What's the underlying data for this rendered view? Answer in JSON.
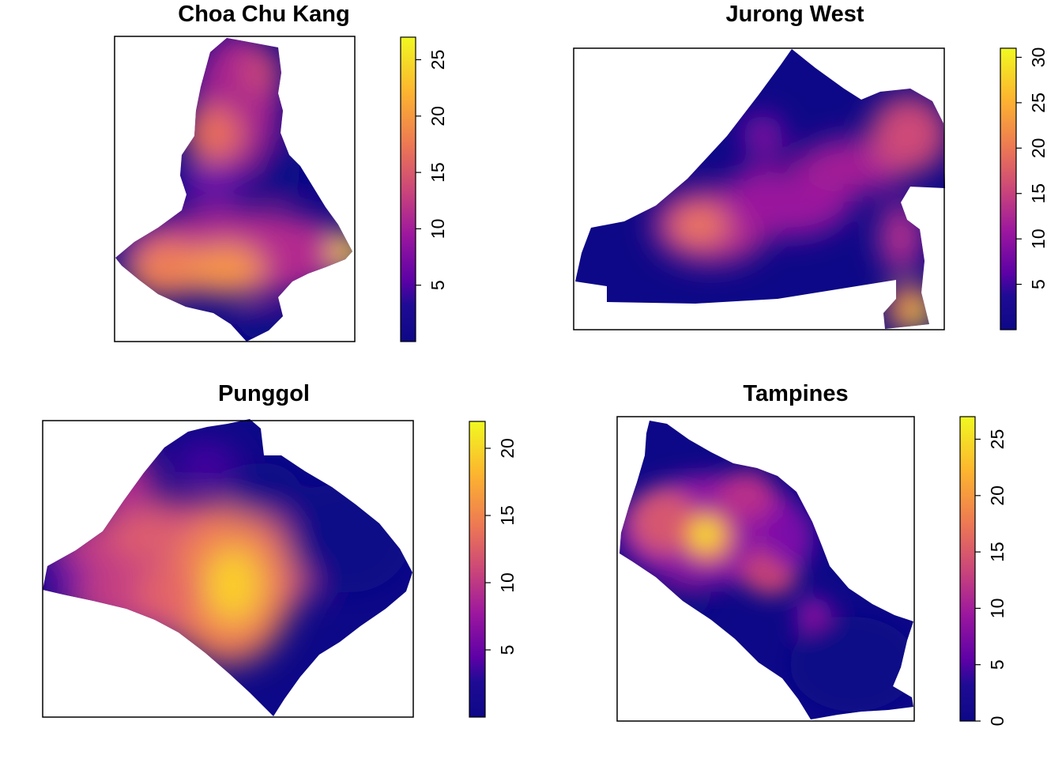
{
  "chart_data": [
    {
      "type": "heatmap",
      "title": "Choa Chu Kang",
      "colorscale": [
        "#0d0887",
        "#5c01a6",
        "#9c179e",
        "#cc4778",
        "#ed7953",
        "#fdb42f",
        "#f0f921"
      ],
      "value_range": [
        0,
        27
      ],
      "colorbar_ticks": [
        5,
        10,
        15,
        20,
        25
      ],
      "hotspots": [
        {
          "x": 0.2,
          "y": 0.8,
          "value": 18
        },
        {
          "x": 0.35,
          "y": 0.58,
          "value": 16
        },
        {
          "x": 0.78,
          "y": 0.52,
          "value": 22
        },
        {
          "x": 0.5,
          "y": 0.3,
          "value": 10
        }
      ]
    },
    {
      "type": "heatmap",
      "title": "Jurong West",
      "colorscale": [
        "#0d0887",
        "#5c01a6",
        "#9c179e",
        "#cc4778",
        "#ed7953",
        "#fdb42f",
        "#f0f921"
      ],
      "value_range": [
        0,
        31
      ],
      "colorbar_ticks": [
        5,
        10,
        15,
        20,
        25,
        30
      ],
      "hotspots": [
        {
          "x": 0.35,
          "y": 0.4,
          "value": 17
        },
        {
          "x": 0.8,
          "y": 0.15,
          "value": 28
        },
        {
          "x": 0.85,
          "y": 0.7,
          "value": 14
        }
      ]
    },
    {
      "type": "heatmap",
      "title": "Punggol",
      "colorscale": [
        "#0d0887",
        "#5c01a6",
        "#9c179e",
        "#cc4778",
        "#ed7953",
        "#fdb42f",
        "#f0f921"
      ],
      "value_range": [
        0,
        22
      ],
      "colorbar_ticks": [
        5,
        10,
        15,
        20
      ],
      "hotspots": [
        {
          "x": 0.5,
          "y": 0.45,
          "value": 21
        },
        {
          "x": 0.3,
          "y": 0.6,
          "value": 12
        }
      ]
    },
    {
      "type": "heatmap",
      "title": "Tampines",
      "colorscale": [
        "#0d0887",
        "#5c01a6",
        "#9c179e",
        "#cc4778",
        "#ed7953",
        "#fdb42f",
        "#f0f921"
      ],
      "value_range": [
        0,
        27
      ],
      "colorbar_ticks": [
        0,
        5,
        10,
        15,
        20,
        25
      ],
      "hotspots": [
        {
          "x": 0.3,
          "y": 0.62,
          "value": 27
        },
        {
          "x": 0.15,
          "y": 0.68,
          "value": 16
        },
        {
          "x": 0.45,
          "y": 0.75,
          "value": 13
        },
        {
          "x": 0.52,
          "y": 0.45,
          "value": 12
        },
        {
          "x": 0.7,
          "y": 0.3,
          "value": 9
        }
      ]
    }
  ]
}
